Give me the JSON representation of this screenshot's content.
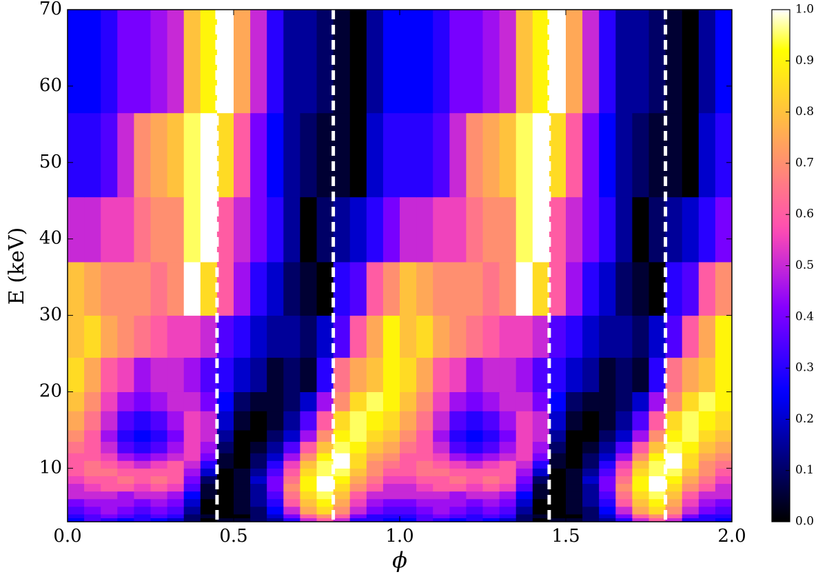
{
  "chart_data": {
    "type": "heatmap",
    "xlabel": "ϕ",
    "ylabel": "E (keV)",
    "colormap": "gnuplot2",
    "xlim": [
      0,
      2
    ],
    "ylim": [
      3,
      70
    ],
    "xticks": [
      {
        "value": 0,
        "label": "0.0"
      },
      0.5,
      {
        "value": 1,
        "label": "1.0"
      },
      1.5,
      {
        "value": 2,
        "label": "2.0"
      }
    ],
    "yticks": [
      10,
      20,
      30,
      40,
      50,
      60,
      70
    ],
    "clim": [
      0,
      1
    ],
    "cticks": [
      {
        "value": 0,
        "label": "0.0"
      },
      0.1,
      0.2,
      0.3,
      0.4,
      0.5,
      0.6,
      0.7,
      0.8,
      0.9,
      {
        "value": 1,
        "label": "1.0"
      }
    ],
    "vlines": [
      0.45,
      0.8,
      1.45,
      1.8
    ],
    "vline_color": "#ffffff",
    "x_edges": [
      0,
      0.05,
      0.1,
      0.15,
      0.2,
      0.25,
      0.3,
      0.35,
      0.4,
      0.45,
      0.5,
      0.55,
      0.6,
      0.65,
      0.7,
      0.75,
      0.8,
      0.85,
      0.9,
      0.95,
      1,
      1.05,
      1.1,
      1.15,
      1.2,
      1.25,
      1.3,
      1.35,
      1.4,
      1.45,
      1.5,
      1.55,
      1.6,
      1.65,
      1.7,
      1.75,
      1.8,
      1.85,
      1.9,
      1.95,
      2
    ],
    "y_edges": [
      3,
      3.5,
      4,
      5,
      6,
      7,
      8,
      9,
      10,
      11,
      12,
      13.5,
      15,
      17.5,
      20,
      24.5,
      30,
      37,
      45.5,
      56.5,
      70
    ],
    "z": [
      [
        0.25,
        0.35,
        0.3,
        0.25,
        0.3,
        0.25,
        0.2,
        0.1,
        0.0,
        0.05,
        0.05,
        0.1,
        0.15,
        0.3,
        0.5,
        0.6,
        0.5,
        0.3,
        0.3,
        0.25,
        0.25,
        0.35,
        0.3,
        0.25,
        0.3,
        0.25,
        0.2,
        0.1,
        0.0,
        0.05,
        0.05,
        0.1,
        0.15,
        0.3,
        0.5,
        0.6,
        0.5,
        0.3,
        0.3,
        0.25
      ],
      [
        0.3,
        0.35,
        0.4,
        0.35,
        0.3,
        0.35,
        0.3,
        0.1,
        0.05,
        0.0,
        0.0,
        0.1,
        0.2,
        0.4,
        0.6,
        0.7,
        0.6,
        0.4,
        0.3,
        0.3,
        0.3,
        0.35,
        0.4,
        0.35,
        0.3,
        0.35,
        0.3,
        0.1,
        0.05,
        0.0,
        0.0,
        0.1,
        0.2,
        0.4,
        0.6,
        0.7,
        0.6,
        0.4,
        0.3,
        0.3
      ],
      [
        0.35,
        0.4,
        0.45,
        0.4,
        0.35,
        0.4,
        0.35,
        0.15,
        0.0,
        0.0,
        0.05,
        0.1,
        0.25,
        0.5,
        0.75,
        0.85,
        0.7,
        0.5,
        0.4,
        0.35,
        0.35,
        0.4,
        0.45,
        0.4,
        0.35,
        0.4,
        0.35,
        0.15,
        0.0,
        0.0,
        0.05,
        0.1,
        0.25,
        0.5,
        0.75,
        0.85,
        0.7,
        0.5,
        0.4,
        0.35
      ],
      [
        0.4,
        0.45,
        0.45,
        0.45,
        0.4,
        0.45,
        0.4,
        0.2,
        0.0,
        0.0,
        0.05,
        0.15,
        0.3,
        0.6,
        0.8,
        0.9,
        0.75,
        0.55,
        0.45,
        0.4,
        0.4,
        0.45,
        0.45,
        0.45,
        0.4,
        0.45,
        0.4,
        0.2,
        0.0,
        0.0,
        0.05,
        0.15,
        0.3,
        0.6,
        0.8,
        0.9,
        0.75,
        0.55,
        0.45,
        0.4
      ],
      [
        0.5,
        0.5,
        0.5,
        0.45,
        0.5,
        0.5,
        0.45,
        0.25,
        0.05,
        0.0,
        0.05,
        0.15,
        0.35,
        0.65,
        0.85,
        0.95,
        0.8,
        0.6,
        0.5,
        0.5,
        0.5,
        0.5,
        0.5,
        0.45,
        0.5,
        0.5,
        0.45,
        0.25,
        0.05,
        0.0,
        0.05,
        0.15,
        0.35,
        0.65,
        0.85,
        0.95,
        0.8,
        0.6,
        0.5,
        0.5
      ],
      [
        0.5,
        0.55,
        0.6,
        0.6,
        0.55,
        0.6,
        0.55,
        0.35,
        0.05,
        0.0,
        0.05,
        0.15,
        0.4,
        0.7,
        0.9,
        1.0,
        0.85,
        0.7,
        0.6,
        0.5,
        0.5,
        0.55,
        0.6,
        0.6,
        0.55,
        0.6,
        0.55,
        0.35,
        0.05,
        0.0,
        0.05,
        0.15,
        0.4,
        0.7,
        0.9,
        1.0,
        0.85,
        0.7,
        0.6,
        0.5
      ],
      [
        0.55,
        0.6,
        0.6,
        0.65,
        0.6,
        0.65,
        0.6,
        0.4,
        0.1,
        0.0,
        0.05,
        0.2,
        0.4,
        0.65,
        0.9,
        1.0,
        0.9,
        0.75,
        0.65,
        0.55,
        0.55,
        0.6,
        0.6,
        0.65,
        0.6,
        0.65,
        0.6,
        0.4,
        0.1,
        0.0,
        0.05,
        0.2,
        0.4,
        0.65,
        0.9,
        1.0,
        0.9,
        0.75,
        0.65,
        0.55
      ],
      [
        0.6,
        0.65,
        0.65,
        0.6,
        0.6,
        0.6,
        0.6,
        0.45,
        0.2,
        0.0,
        0.05,
        0.15,
        0.35,
        0.6,
        0.85,
        0.95,
        0.95,
        0.8,
        0.7,
        0.6,
        0.6,
        0.65,
        0.65,
        0.6,
        0.6,
        0.6,
        0.6,
        0.45,
        0.2,
        0.0,
        0.05,
        0.15,
        0.35,
        0.6,
        0.85,
        0.95,
        0.95,
        0.8,
        0.7,
        0.6
      ],
      [
        0.6,
        0.65,
        0.6,
        0.55,
        0.5,
        0.55,
        0.6,
        0.5,
        0.3,
        0.05,
        0.0,
        0.1,
        0.3,
        0.55,
        0.8,
        0.95,
        1.0,
        0.85,
        0.7,
        0.65,
        0.6,
        0.65,
        0.6,
        0.55,
        0.5,
        0.55,
        0.6,
        0.5,
        0.3,
        0.05,
        0.0,
        0.1,
        0.3,
        0.55,
        0.8,
        0.95,
        1.0,
        0.85,
        0.7,
        0.65
      ],
      [
        0.6,
        0.6,
        0.55,
        0.45,
        0.4,
        0.45,
        0.5,
        0.55,
        0.4,
        0.05,
        0.0,
        0.1,
        0.2,
        0.45,
        0.7,
        0.9,
        1.0,
        0.85,
        0.75,
        0.7,
        0.6,
        0.6,
        0.55,
        0.45,
        0.4,
        0.45,
        0.5,
        0.55,
        0.4,
        0.05,
        0.0,
        0.1,
        0.2,
        0.45,
        0.7,
        0.9,
        1.0,
        0.85,
        0.75,
        0.7
      ],
      [
        0.65,
        0.6,
        0.5,
        0.35,
        0.3,
        0.35,
        0.45,
        0.55,
        0.45,
        0.1,
        0.0,
        0.05,
        0.15,
        0.35,
        0.6,
        0.8,
        0.95,
        0.9,
        0.8,
        0.75,
        0.65,
        0.6,
        0.5,
        0.35,
        0.3,
        0.35,
        0.45,
        0.55,
        0.45,
        0.1,
        0.0,
        0.05,
        0.15,
        0.35,
        0.6,
        0.8,
        0.95,
        0.9,
        0.8,
        0.75
      ],
      [
        0.7,
        0.6,
        0.45,
        0.3,
        0.25,
        0.3,
        0.4,
        0.55,
        0.5,
        0.15,
        0.0,
        0.0,
        0.1,
        0.2,
        0.45,
        0.7,
        0.9,
        0.95,
        0.85,
        0.8,
        0.7,
        0.6,
        0.45,
        0.3,
        0.25,
        0.3,
        0.4,
        0.55,
        0.5,
        0.15,
        0.0,
        0.0,
        0.1,
        0.2,
        0.45,
        0.7,
        0.9,
        0.95,
        0.85,
        0.8
      ],
      [
        0.75,
        0.65,
        0.5,
        0.35,
        0.3,
        0.35,
        0.45,
        0.55,
        0.5,
        0.2,
        0.05,
        0.0,
        0.05,
        0.15,
        0.35,
        0.6,
        0.85,
        0.95,
        0.9,
        0.85,
        0.75,
        0.65,
        0.5,
        0.35,
        0.3,
        0.35,
        0.45,
        0.55,
        0.5,
        0.2,
        0.05,
        0.0,
        0.05,
        0.15,
        0.35,
        0.6,
        0.85,
        0.95,
        0.9,
        0.85
      ],
      [
        0.8,
        0.7,
        0.55,
        0.45,
        0.4,
        0.45,
        0.5,
        0.5,
        0.4,
        0.25,
        0.1,
        0.05,
        0.05,
        0.1,
        0.2,
        0.45,
        0.7,
        0.85,
        0.95,
        0.9,
        0.8,
        0.7,
        0.55,
        0.45,
        0.4,
        0.45,
        0.5,
        0.5,
        0.4,
        0.25,
        0.1,
        0.05,
        0.05,
        0.1,
        0.2,
        0.45,
        0.7,
        0.85,
        0.95,
        0.9
      ],
      [
        0.85,
        0.75,
        0.6,
        0.55,
        0.45,
        0.5,
        0.5,
        0.45,
        0.35,
        0.3,
        0.2,
        0.15,
        0.05,
        0.1,
        0.05,
        0.3,
        0.65,
        0.75,
        0.8,
        0.9,
        0.85,
        0.75,
        0.6,
        0.55,
        0.45,
        0.5,
        0.5,
        0.45,
        0.35,
        0.3,
        0.2,
        0.15,
        0.05,
        0.1,
        0.05,
        0.3,
        0.65,
        0.75,
        0.8,
        0.9
      ],
      [
        0.8,
        0.85,
        0.75,
        0.7,
        0.65,
        0.6,
        0.55,
        0.55,
        0.5,
        0.35,
        0.3,
        0.2,
        0.15,
        0.15,
        0.1,
        0.2,
        0.35,
        0.6,
        0.75,
        0.9,
        0.8,
        0.85,
        0.75,
        0.7,
        0.65,
        0.6,
        0.55,
        0.55,
        0.5,
        0.35,
        0.3,
        0.2,
        0.15,
        0.15,
        0.1,
        0.2,
        0.35,
        0.6,
        0.75,
        0.9
      ],
      [
        0.8,
        0.75,
        0.7,
        0.7,
        0.7,
        0.65,
        0.7,
        1.0,
        0.85,
        0.6,
        0.45,
        0.3,
        0.2,
        0.1,
        0.05,
        0.0,
        0.3,
        0.35,
        0.6,
        0.7,
        0.8,
        0.75,
        0.7,
        0.7,
        0.7,
        0.65,
        0.7,
        1.0,
        0.85,
        0.6,
        0.45,
        0.3,
        0.2,
        0.1,
        0.05,
        0.0,
        0.3,
        0.35,
        0.6,
        0.7
      ],
      [
        0.5,
        0.5,
        0.55,
        0.55,
        0.65,
        0.7,
        0.7,
        0.95,
        1.0,
        0.6,
        0.5,
        0.4,
        0.3,
        0.15,
        0.0,
        0.1,
        0.15,
        0.2,
        0.3,
        0.4,
        0.5,
        0.5,
        0.55,
        0.55,
        0.65,
        0.7,
        0.7,
        0.95,
        1.0,
        0.6,
        0.5,
        0.4,
        0.3,
        0.15,
        0.0,
        0.1,
        0.15,
        0.2,
        0.3,
        0.4
      ],
      [
        0.3,
        0.3,
        0.35,
        0.5,
        0.7,
        0.75,
        0.8,
        0.95,
        1.0,
        0.85,
        0.6,
        0.4,
        0.25,
        0.15,
        0.1,
        0.05,
        0.05,
        0.0,
        0.2,
        0.3,
        0.3,
        0.3,
        0.35,
        0.5,
        0.7,
        0.75,
        0.8,
        0.95,
        1.0,
        0.85,
        0.6,
        0.4,
        0.25,
        0.15,
        0.1,
        0.05,
        0.05,
        0.0,
        0.2,
        0.3
      ],
      [
        0.25,
        0.25,
        0.3,
        0.4,
        0.4,
        0.45,
        0.5,
        0.8,
        0.9,
        1.0,
        0.75,
        0.5,
        0.3,
        0.15,
        0.15,
        0.1,
        0.05,
        0.0,
        0.15,
        0.25,
        0.25,
        0.25,
        0.3,
        0.4,
        0.4,
        0.45,
        0.5,
        0.8,
        0.9,
        1.0,
        0.75,
        0.5,
        0.3,
        0.15,
        0.15,
        0.1,
        0.05,
        0.0,
        0.15,
        0.25
      ]
    ]
  }
}
